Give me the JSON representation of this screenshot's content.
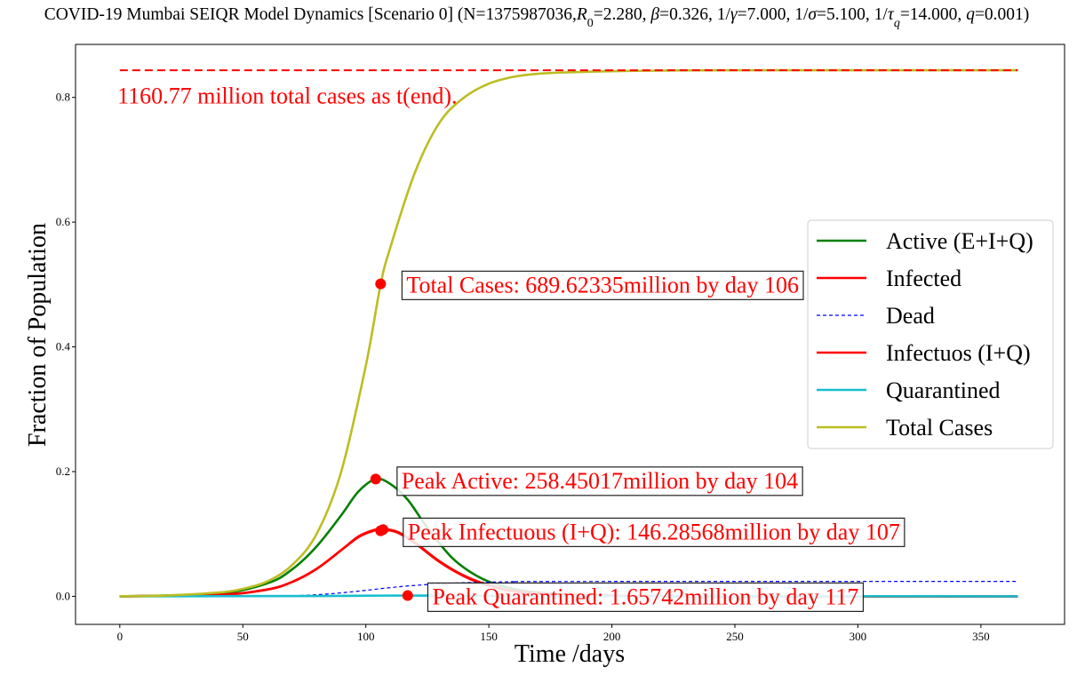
{
  "chart_data": {
    "type": "line",
    "title_parts": [
      "COVID-19 Mumbai SEIQR Model Dynamics [Scenario 0] (N=1375987036,",
      "R",
      "0",
      "=2.280, ",
      "β",
      "=0.326, 1/",
      "γ",
      "=7.000, 1/",
      "σ",
      "=5.100, 1/",
      "τ",
      "q",
      "=14.000, ",
      "q",
      "=0.001)"
    ],
    "xlabel": "Time /days",
    "ylabel": "Fraction of Population",
    "xlim": [
      -18,
      384
    ],
    "ylim": [
      -0.045,
      0.885
    ],
    "x_ticks": [
      0,
      50,
      100,
      150,
      200,
      250,
      300,
      350
    ],
    "y_ticks": [
      0.0,
      0.2,
      0.4,
      0.6,
      0.8
    ],
    "x_tick_labels": [
      "0",
      "50",
      "100",
      "150",
      "200",
      "250",
      "300",
      "350"
    ],
    "y_tick_labels": [
      "0.0",
      "0.2",
      "0.4",
      "0.6",
      "0.8"
    ],
    "grid": false,
    "legend_position": "center-right",
    "x_end": 365,
    "series": [
      {
        "name": "Active (E+I+Q)",
        "color": "#008000",
        "dash": "solid",
        "x": [
          0,
          40,
          60,
          70,
          80,
          90,
          97,
          104,
          110,
          117,
          125,
          135,
          145,
          155,
          170,
          200,
          250,
          365
        ],
        "y": [
          0.0,
          0.0045,
          0.021,
          0.043,
          0.08,
          0.13,
          0.168,
          0.188,
          0.18,
          0.155,
          0.11,
          0.062,
          0.033,
          0.017,
          0.006,
          0.001,
          0.0,
          0.0
        ]
      },
      {
        "name": "Infected",
        "color": "#ff0000",
        "dash": "solid",
        "x": [
          0,
          40,
          60,
          70,
          80,
          90,
          97,
          103,
          107,
          113,
          120,
          130,
          140,
          150,
          165,
          200,
          250,
          365
        ],
        "y": [
          0.0,
          0.0022,
          0.011,
          0.023,
          0.044,
          0.074,
          0.095,
          0.105,
          0.107,
          0.102,
          0.085,
          0.055,
          0.032,
          0.017,
          0.006,
          0.001,
          0.0,
          0.0
        ]
      },
      {
        "name": "Dead",
        "color": "#0000ff",
        "dash": "4,3",
        "width": 1.2,
        "x": [
          0,
          60,
          70,
          80,
          90,
          100,
          110,
          120,
          130,
          140,
          150,
          160,
          180,
          365
        ],
        "y": [
          0.0,
          0.0004,
          0.001,
          0.0025,
          0.0055,
          0.0095,
          0.014,
          0.0175,
          0.02,
          0.0218,
          0.0228,
          0.0234,
          0.0238,
          0.024
        ]
      },
      {
        "name": "Infectuos (I+Q)",
        "color": "#ff0000",
        "dash": "solid",
        "width": 2.6,
        "x": [
          0,
          40,
          60,
          70,
          80,
          90,
          97,
          103,
          107,
          113,
          120,
          130,
          140,
          150,
          165,
          200,
          250,
          365
        ],
        "y": [
          0.0,
          0.0022,
          0.011,
          0.023,
          0.044,
          0.074,
          0.096,
          0.106,
          0.108,
          0.103,
          0.086,
          0.056,
          0.033,
          0.018,
          0.006,
          0.001,
          0.0,
          0.0
        ]
      },
      {
        "name": "Quarantined",
        "color": "#17becf",
        "dash": "solid",
        "x": [
          0,
          80,
          100,
          117,
          140,
          170,
          365
        ],
        "y": [
          0.0,
          0.0005,
          0.001,
          0.0012,
          0.001,
          0.0005,
          0.0
        ]
      },
      {
        "name": "Total Cases",
        "color": "#bcbd22",
        "dash": "solid",
        "x": [
          0,
          20,
          40,
          50,
          60,
          70,
          80,
          90,
          100,
          106,
          110,
          120,
          130,
          140,
          150,
          160,
          170,
          180,
          200,
          220,
          250,
          365
        ],
        "y": [
          0.0,
          0.0015,
          0.006,
          0.012,
          0.024,
          0.05,
          0.1,
          0.2,
          0.37,
          0.5,
          0.56,
          0.68,
          0.76,
          0.8,
          0.822,
          0.833,
          0.838,
          0.84,
          0.842,
          0.843,
          0.8436,
          0.8436
        ]
      }
    ],
    "reference_line": {
      "color": "#ff0000",
      "x": [
        0,
        365
      ],
      "y": 0.8436
    },
    "markers": [
      {
        "x": 106,
        "y": 0.501,
        "color": "#ff0000"
      },
      {
        "x": 104,
        "y": 0.188,
        "color": "#ff0000"
      },
      {
        "x": 106,
        "y": 0.105,
        "color": "#ff0000"
      },
      {
        "x": 107,
        "y": 0.107,
        "color": "#ff0000"
      },
      {
        "x": 117,
        "y": 0.0012,
        "color": "#ff0000"
      }
    ],
    "annotations": [
      {
        "text": "1160.77 million total cases as t(end).",
        "x": -1,
        "y": 0.803,
        "boxed": false
      },
      {
        "text": "Total Cases: 689.62335million by day 106",
        "x": 116.5,
        "y": 0.5,
        "boxed": true
      },
      {
        "text": "Peak Active: 258.45017million by day 104",
        "x": 114.5,
        "y": 0.186,
        "boxed": true
      },
      {
        "text": "Peak Infectuous (I+Q): 146.28568million by day 107",
        "x": 117,
        "y": 0.104,
        "boxed": true
      },
      {
        "text": "Peak Quarantined: 1.65742million by day 117",
        "x": 127,
        "y": 0.0,
        "boxed": true
      }
    ]
  }
}
